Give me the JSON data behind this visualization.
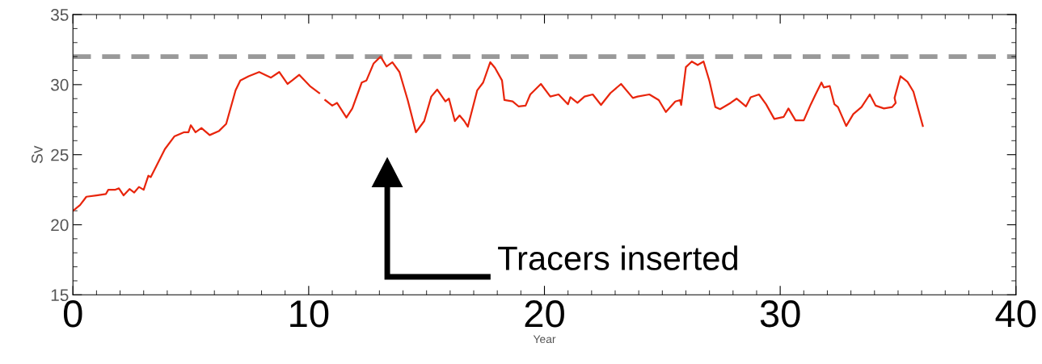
{
  "chart_data": {
    "type": "line",
    "xlabel": "Year",
    "ylabel": "Sv",
    "x": [
      0,
      0.3,
      0.57,
      1.0,
      1.4,
      1.5,
      1.8,
      1.95,
      2.15,
      2.4,
      2.6,
      2.8,
      3.0,
      3.2,
      3.3,
      3.9,
      4.3,
      4.7,
      4.9,
      5.0,
      5.2,
      5.45,
      5.8,
      6.2,
      6.5,
      6.9,
      7.1,
      7.45,
      7.9,
      8.4,
      8.75,
      9.1,
      9.3,
      9.6,
      10.05,
      10.45,
      10.55,
      10.7,
      11.0,
      11.2,
      11.6,
      11.85,
      12.25,
      12.45,
      12.75,
      13.05,
      13.3,
      13.55,
      13.85,
      14.2,
      14.55,
      14.9,
      15.2,
      15.45,
      15.8,
      15.95,
      16.2,
      16.4,
      16.6,
      16.75,
      17.15,
      17.4,
      17.7,
      17.9,
      18.2,
      18.3,
      18.65,
      18.9,
      19.2,
      19.4,
      19.85,
      20.25,
      20.6,
      21.0,
      21.1,
      21.4,
      21.7,
      22.05,
      22.4,
      22.8,
      23.25,
      23.75,
      23.95,
      24.45,
      24.85,
      25.15,
      25.55,
      25.75,
      25.8,
      26.0,
      26.25,
      26.5,
      26.75,
      27.0,
      27.25,
      27.45,
      27.9,
      28.15,
      28.55,
      28.75,
      29.1,
      29.4,
      29.75,
      30.15,
      30.35,
      30.65,
      31.0,
      31.3,
      31.5,
      31.75,
      31.85,
      32.1,
      32.3,
      32.45,
      32.8,
      33.1,
      33.45,
      33.8,
      34.05,
      34.4,
      34.75,
      34.9,
      34.85,
      35.1,
      35.4,
      35.65,
      36.05
    ],
    "series": [
      {
        "color": "#e8250c",
        "values": [
          21.0,
          21.4,
          22.0,
          22.1,
          22.2,
          22.5,
          22.5,
          22.6,
          22.1,
          22.55,
          22.3,
          22.7,
          22.5,
          23.5,
          23.4,
          25.4,
          26.3,
          26.6,
          26.6,
          27.1,
          26.6,
          26.9,
          26.4,
          26.7,
          27.2,
          29.6,
          30.3,
          30.6,
          30.9,
          30.5,
          30.9,
          30.05,
          30.3,
          30.7,
          29.9,
          29.4,
          null,
          28.9,
          28.5,
          28.7,
          27.65,
          28.3,
          30.15,
          30.3,
          31.5,
          32.0,
          31.3,
          31.6,
          30.9,
          28.9,
          26.6,
          27.4,
          29.15,
          29.65,
          28.8,
          29.0,
          27.4,
          27.8,
          27.4,
          27.0,
          29.6,
          30.15,
          31.6,
          31.2,
          30.3,
          28.9,
          28.8,
          28.45,
          28.5,
          29.3,
          30.05,
          29.15,
          29.3,
          28.6,
          29.1,
          28.7,
          29.15,
          29.3,
          28.55,
          29.4,
          30.05,
          29.05,
          29.15,
          29.3,
          28.9,
          28.05,
          28.8,
          28.9,
          28.55,
          31.25,
          31.65,
          31.4,
          31.65,
          30.25,
          28.4,
          28.25,
          28.7,
          29.0,
          28.45,
          29.1,
          29.3,
          28.6,
          27.55,
          27.7,
          28.3,
          27.45,
          27.45,
          28.6,
          29.3,
          30.15,
          29.8,
          29.9,
          28.6,
          28.4,
          27.05,
          27.9,
          28.4,
          29.3,
          28.5,
          28.3,
          28.4,
          28.7,
          29.05,
          30.6,
          30.2,
          29.5,
          27.05
        ]
      }
    ],
    "xlim": [
      0,
      40
    ],
    "ylim": [
      15,
      35
    ],
    "xticks": [
      0,
      10,
      20,
      30,
      40
    ],
    "yticks": [
      15,
      20,
      25,
      30,
      35
    ],
    "ref_lines": [
      {
        "axis": "y",
        "value": 32,
        "color": "#999999",
        "line_style": "dashed"
      }
    ],
    "annotations": [
      "Tracers inserted"
    ]
  }
}
